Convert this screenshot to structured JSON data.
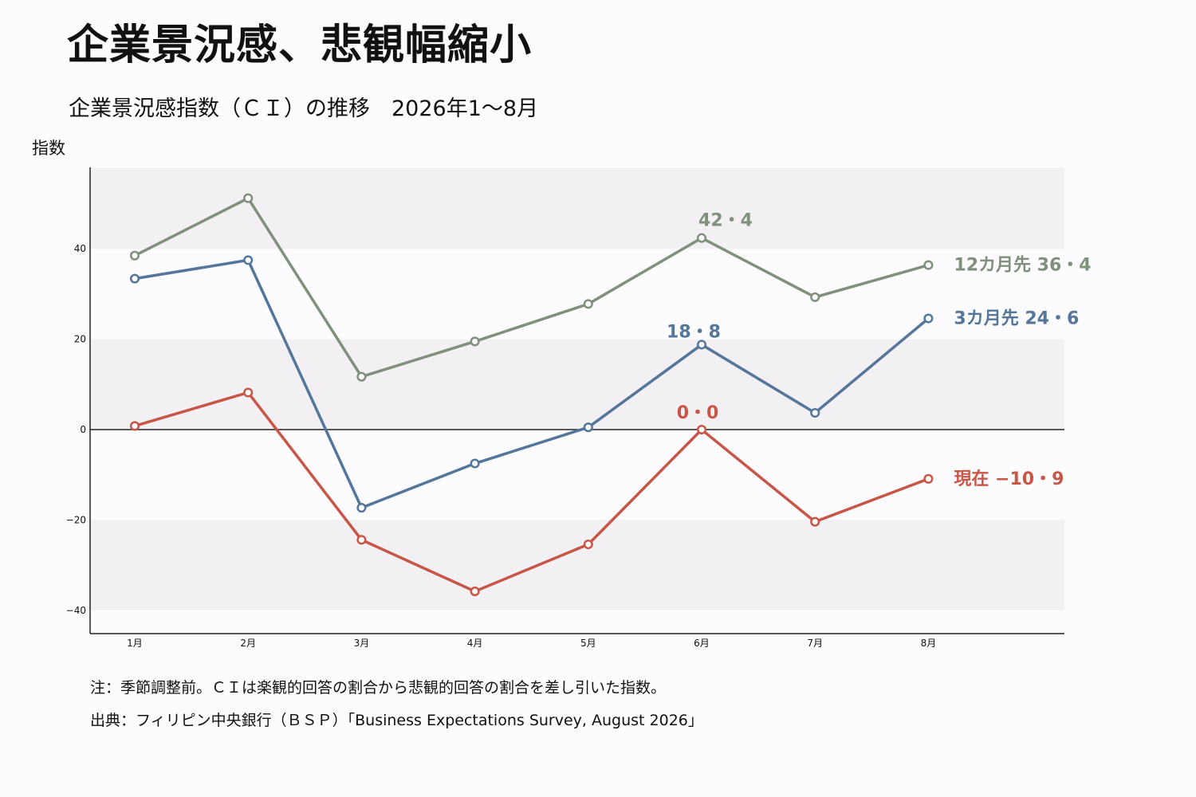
{
  "title": "企業景況感、悲観幅縮小",
  "subtitle": "企業景況感指数（ＣＩ）の推移　2026年1～8月",
  "notes": {
    "note1": "注：季節調整前。ＣＩは楽観的回答の割合から悲観的回答の割合を差し引いた指数。",
    "note2": "出典：フィリピン中央銀行（ＢＳＰ）「Business Expectations Survey, August 2026」"
  },
  "chart_data": {
    "type": "line",
    "ylabel": "指数",
    "xlabel": "",
    "categories": [
      "1月",
      "2月",
      "3月",
      "4月",
      "5月",
      "6月",
      "7月",
      "8月"
    ],
    "ylim": [
      -45,
      58
    ],
    "yticks": [
      -40,
      -20,
      0,
      20,
      40
    ],
    "ytick_labels": [
      "−40",
      "−20",
      "0",
      "20",
      "40"
    ],
    "background_bands": [
      [
        -40,
        -20
      ],
      [
        0,
        20
      ],
      [
        40,
        58
      ]
    ],
    "grid": false,
    "series": [
      {
        "key": "twelve",
        "name": "12カ月先",
        "color": "#7f917a",
        "values": [
          38.5,
          51.2,
          11.7,
          19.5,
          27.8,
          42.4,
          29.3,
          36.4
        ],
        "end_label": "12カ月先 36・4",
        "peak_label": "42・4"
      },
      {
        "key": "three",
        "name": "3カ月先",
        "color": "#53769a",
        "values": [
          33.4,
          37.5,
          -17.3,
          -7.5,
          0.5,
          18.8,
          3.7,
          24.6
        ],
        "end_label": "3カ月先 24・6",
        "peak_label": "18・8"
      },
      {
        "key": "current",
        "name": "現在",
        "color": "#c85647",
        "values": [
          0.8,
          8.2,
          -24.4,
          -35.8,
          -25.4,
          0.0,
          -20.4,
          -10.9
        ],
        "end_label": "現在 −10・9",
        "peak_label": "0・0"
      }
    ]
  }
}
